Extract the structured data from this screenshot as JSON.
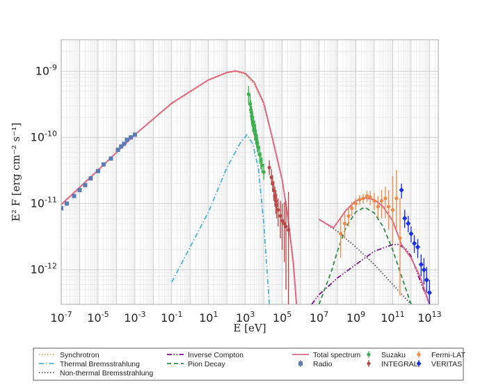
{
  "chart_data": {
    "type": "line",
    "xlabel": "E [eV]",
    "ylabel": "E² F [erg cm⁻² s⁻¹]",
    "xscale": "log",
    "yscale": "log",
    "xlim": [
      1e-07,
      30000000000000.0
    ],
    "ylim": [
      3e-13,
      3e-09
    ],
    "grid": true,
    "legend_position": "below",
    "x_tick_labels": [
      {
        "value": 1e-07,
        "base": "10",
        "exp": "-7"
      },
      {
        "value": 1e-05,
        "base": "10",
        "exp": "-5"
      },
      {
        "value": 0.001,
        "base": "10",
        "exp": "-3"
      },
      {
        "value": 0.1,
        "base": "10",
        "exp": "-1"
      },
      {
        "value": 10.0,
        "base": "10",
        "exp": "1"
      },
      {
        "value": 1000.0,
        "base": "10",
        "exp": "3"
      },
      {
        "value": 100000.0,
        "base": "10",
        "exp": "5"
      },
      {
        "value": 10000000.0,
        "base": "10",
        "exp": "7"
      },
      {
        "value": 1000000000.0,
        "base": "10",
        "exp": "9"
      },
      {
        "value": 100000000000.0,
        "base": "10",
        "exp": "11"
      },
      {
        "value": 10000000000000.0,
        "base": "10",
        "exp": "13"
      }
    ],
    "y_tick_labels": [
      {
        "value": 1e-09,
        "base": "10",
        "exp": "-9"
      },
      {
        "value": 1e-10,
        "base": "10",
        "exp": "-10"
      },
      {
        "value": 1e-11,
        "base": "10",
        "exp": "-11"
      },
      {
        "value": 1e-12,
        "base": "10",
        "exp": "-12"
      }
    ],
    "series": [
      {
        "name": "Synchrotron",
        "style": "dotted",
        "color": "#d4b25c",
        "points": [
          [
            1e-07,
            9.5e-12
          ],
          [
            1e-05,
            3.1e-11
          ],
          [
            0.001,
            1.1e-10
          ],
          [
            0.1,
            3.2e-10
          ],
          [
            10.0,
            7.3e-10
          ],
          [
            100.0,
            9.4e-10
          ],
          [
            300.0,
            9.9e-10
          ],
          [
            1000.0,
            8.9e-10
          ],
          [
            3000.0,
            6.3e-10
          ],
          [
            10000.0,
            3.1e-10
          ],
          [
            30000.0,
            9e-11
          ],
          [
            100000.0,
            2.2e-11
          ],
          [
            200000.0,
            6e-12
          ],
          [
            400000.0,
            1.1e-12
          ],
          [
            600000.0,
            3e-13
          ]
        ]
      },
      {
        "name": "Thermal Bremsstrahlung",
        "style": "dashdot",
        "color": "#4bb3d4",
        "points": [
          [
            0.1,
            6.5e-13
          ],
          [
            1.0,
            2.2e-12
          ],
          [
            10.0,
            7.5e-12
          ],
          [
            100.0,
            3.5e-11
          ],
          [
            500.0,
            8e-11
          ],
          [
            1200.0,
            1.1e-10
          ],
          [
            2500.0,
            8e-11
          ],
          [
            5000.0,
            3.5e-11
          ],
          [
            10000.0,
            5e-12
          ],
          [
            15000.0,
            1e-12
          ],
          [
            20000.0,
            3e-13
          ]
        ]
      },
      {
        "name": "Non-thermal Bremsstrahlung",
        "style": "dotted",
        "color": "#505050",
        "points": [
          [
            10000000.0,
            5.8e-12
          ],
          [
            100000000.0,
            3.8e-12
          ],
          [
            1000000000.0,
            2.2e-12
          ],
          [
            10000000000.0,
            1.2e-12
          ],
          [
            100000000000.0,
            6e-13
          ],
          [
            1000000000000.0,
            3e-13
          ]
        ]
      },
      {
        "name": "Inverse Compton",
        "style": "dashdotdot",
        "color": "#7a0f8a",
        "points": [
          [
            4000000.0,
            3e-13
          ],
          [
            10000000.0,
            4.2e-13
          ],
          [
            100000000.0,
            7.5e-13
          ],
          [
            1000000000.0,
            1.2e-12
          ],
          [
            10000000000.0,
            1.9e-12
          ],
          [
            100000000000.0,
            2.4e-12
          ],
          [
            200000000000.0,
            2.4e-12
          ],
          [
            500000000000.0,
            2.1e-12
          ],
          [
            1000000000000.0,
            1.6e-12
          ],
          [
            3000000000000.0,
            7e-13
          ],
          [
            10000000000000.0,
            3e-13
          ]
        ]
      },
      {
        "name": "Pion Decay",
        "style": "dashed",
        "color": "#2e8b46",
        "points": [
          [
            10000000.0,
            3e-13
          ],
          [
            50000000.0,
            1e-12
          ],
          [
            100000000.0,
            1.9e-12
          ],
          [
            300000000.0,
            4.5e-12
          ],
          [
            1000000000.0,
            7.5e-12
          ],
          [
            3000000000.0,
            8.8e-12
          ],
          [
            10000000000.0,
            7.2e-12
          ],
          [
            30000000000.0,
            4.5e-12
          ],
          [
            100000000000.0,
            2e-12
          ],
          [
            300000000000.0,
            8e-13
          ],
          [
            1000000000000.0,
            3e-13
          ]
        ]
      },
      {
        "name": "Total spectrum",
        "style": "solid",
        "color": "#e06887",
        "points": [
          [
            1e-07,
            9.7e-12
          ],
          [
            1e-05,
            3.2e-11
          ],
          [
            0.001,
            1.1e-10
          ],
          [
            0.1,
            3.3e-10
          ],
          [
            10.0,
            7.4e-10
          ],
          [
            100.0,
            9.6e-10
          ],
          [
            300.0,
            1.01e-09
          ],
          [
            1000.0,
            9.3e-10
          ],
          [
            3000.0,
            6.8e-10
          ],
          [
            10000.0,
            3.3e-10
          ],
          [
            30000.0,
            9.5e-11
          ],
          [
            100000.0,
            2.3e-11
          ],
          [
            200000.0,
            6.5e-12
          ],
          [
            400000.0,
            1.3e-12
          ],
          [
            600000.0,
            3e-13
          ]
        ]
      },
      {
        "name": "Total spectrum",
        "style": "solid",
        "color": "#e06887",
        "points": [
          [
            10000000.0,
            5.8e-12
          ],
          [
            30000000.0,
            4.8e-12
          ],
          [
            60000000.0,
            4.3e-12
          ],
          [
            100000000.0,
            5.2e-12
          ],
          [
            300000000.0,
            8e-12
          ],
          [
            1000000000.0,
            1.1e-11
          ],
          [
            3000000000.0,
            1.22e-11
          ],
          [
            10000000000.0,
            1.15e-11
          ],
          [
            30000000000.0,
            9e-12
          ],
          [
            100000000000.0,
            5.5e-12
          ],
          [
            300000000000.0,
            2.4e-12
          ],
          [
            1000000000000.0,
            1.5e-12
          ],
          [
            3000000000000.0,
            8e-13
          ],
          [
            10000000000000.0,
            3e-13
          ]
        ]
      }
    ],
    "data_series": [
      {
        "name": "Radio",
        "color": "#5b7bb8",
        "marker": "square",
        "points": [
          [
            1e-07,
            8.5e-12
          ],
          [
            2e-07,
            1e-11
          ],
          [
            5e-07,
            1.3e-11
          ],
          [
            1e-06,
            1.6e-11
          ],
          [
            2e-06,
            1.9e-11
          ],
          [
            4e-06,
            2.4e-11
          ],
          [
            1e-05,
            3.1e-11
          ],
          [
            2e-05,
            3.9e-11
          ],
          [
            5e-05,
            4.8e-11
          ],
          [
            0.00012,
            6.5e-11
          ],
          [
            0.00018,
            7.3e-11
          ],
          [
            0.00026,
            8e-11
          ],
          [
            0.00037,
            9.2e-11
          ],
          [
            0.0006,
            1e-10
          ],
          [
            0.001,
            1.1e-10
          ]
        ]
      },
      {
        "name": "Suzaku",
        "color": "#3daf4f",
        "marker": "dot",
        "points": [
          [
            1500.0,
            4.5e-10,
            6e-10,
            3.2e-10
          ],
          [
            1800.0,
            3.2e-10,
            4.5e-10,
            2.3e-10
          ],
          [
            2000.0,
            2.6e-10,
            3.6e-10,
            1.8e-10
          ],
          [
            2200.0,
            2.1e-10,
            3e-10,
            1.5e-10
          ],
          [
            2500.0,
            1.7e-10,
            2.5e-10,
            1.2e-10
          ],
          [
            2800.0,
            1.5e-10,
            2.1e-10,
            1.1e-10
          ],
          [
            3200.0,
            1.3e-10,
            1.8e-10,
            9e-11
          ],
          [
            3600.0,
            1.1e-10,
            1.6e-10,
            8e-11
          ],
          [
            4000.0,
            9.5e-11,
            1.3e-10,
            7e-11
          ],
          [
            4500.0,
            8e-11,
            1.1e-10,
            6e-11
          ],
          [
            5000.0,
            7e-11,
            9e-11,
            5.3e-11
          ],
          [
            6000.0,
            5.5e-11,
            7.5e-11,
            4e-11
          ],
          [
            7000.0,
            4.5e-11,
            6e-11,
            3.3e-11
          ],
          [
            8000.0,
            3.8e-11,
            5e-11,
            2.9e-11
          ],
          [
            10000.0,
            3e-11,
            4e-11,
            2.3e-11
          ]
        ]
      },
      {
        "name": "INTEGRAL",
        "color": "#b84a4a",
        "marker": "dot",
        "points": [
          [
            20000.0,
            3.5e-11,
            4.5e-11,
            2.7e-11
          ],
          [
            26000.0,
            2.5e-11,
            3.3e-11,
            1.9e-11
          ],
          [
            30000.0,
            2e-11,
            2.7e-11,
            1.5e-11
          ],
          [
            35000.0,
            1.6e-11,
            2.2e-11,
            1.1e-11
          ],
          [
            40000.0,
            1.3e-11,
            1.8e-11,
            9e-12
          ],
          [
            45000.0,
            1.1e-11,
            1.6e-11,
            7e-12
          ],
          [
            50000.0,
            9.5e-12,
            1.4e-11,
            6e-12
          ],
          [
            60000.0,
            8e-12,
            1.2e-11,
            4.5e-12
          ],
          [
            80000.0,
            6.5e-12,
            1.1e-11,
            3e-12
          ],
          [
            100000.0,
            5.5e-12,
            1e-11,
            2e-12
          ],
          [
            130000.0,
            5e-12,
            1.05e-11,
            1.3e-12
          ],
          [
            160000.0,
            4.5e-12,
            1.1e-11,
            5e-13
          ],
          [
            220000.0,
            4e-12,
            1.5e-11,
            3e-13
          ]
        ]
      },
      {
        "name": "Fermi-LAT",
        "color": "#f08a4b",
        "marker": "dot",
        "points": [
          [
            150000000.0,
            3.5e-12,
            6e-12,
            1.5e-12
          ],
          [
            250000000.0,
            5e-12,
            7e-12,
            3e-12
          ],
          [
            400000000.0,
            6.5e-12,
            8.5e-12,
            4.5e-12
          ],
          [
            600000000.0,
            8.5e-12,
            1.05e-11,
            6.5e-12
          ],
          [
            1000000000.0,
            1e-11,
            1.2e-11,
            8e-12
          ],
          [
            1600000000.0,
            1.15e-11,
            1.35e-11,
            9.5e-12
          ],
          [
            2500000000.0,
            1.2e-11,
            1.4e-11,
            1e-11
          ],
          [
            4000000000.0,
            1.3e-11,
            1.55e-11,
            1.05e-11
          ],
          [
            6000000000.0,
            1.25e-11,
            1.55e-11,
            9.5e-12
          ],
          [
            10000000000.0,
            1.1e-11,
            1.45e-11,
            8e-12
          ],
          [
            16000000000.0,
            9e-12,
            1.3e-11,
            6e-12
          ],
          [
            25000000000.0,
            1.1e-11,
            1.6e-11,
            6e-12
          ],
          [
            40000000000.0,
            1.2e-11,
            1.8e-11,
            6e-12
          ],
          [
            60000000000.0,
            9e-12,
            1.6e-11,
            4e-12
          ],
          [
            100000000000.0,
            8e-12,
            2.6e-11,
            2.5e-12
          ],
          [
            160000000000.0,
            1.2e-11,
            3.2e-11,
            4e-12
          ],
          [
            250000000000.0,
            3e-12,
            1.2e-11,
            4e-13
          ]
        ]
      },
      {
        "name": "VERITAS",
        "color": "#1a2de8",
        "marker": "diamond",
        "points": [
          [
            300000000000.0,
            1.6e-11,
            2e-11,
            1.2e-11
          ],
          [
            450000000000.0,
            6e-12,
            8e-12,
            4.3e-12
          ],
          [
            700000000000.0,
            5e-12,
            6.5e-12,
            3.7e-12
          ],
          [
            1000000000000.0,
            3.5e-12,
            4.5e-12,
            2.6e-12
          ],
          [
            1500000000000.0,
            2.5e-12,
            3.3e-12,
            1.8e-12
          ],
          [
            2300000000000.0,
            2.2e-12,
            2.9e-12,
            1.5e-12
          ],
          [
            3500000000000.0,
            1.2e-12,
            1.7e-12,
            8e-13
          ],
          [
            5000000000000.0,
            1e-12,
            1.5e-12,
            6e-13
          ],
          [
            7000000000000.0,
            7e-13,
            1.1e-12,
            4.5e-13
          ],
          [
            10000000000000.0,
            4.5e-13,
            7e-13,
            3e-13
          ]
        ]
      }
    ],
    "legend": [
      {
        "label": "Synchrotron",
        "kind": "line",
        "style": "dotted",
        "color": "#d4b25c"
      },
      {
        "label": "Thermal Bremsstrahlung",
        "kind": "line",
        "style": "dashdot",
        "color": "#4bb3d4"
      },
      {
        "label": "Non-thermal Bremsstrahlung",
        "kind": "line",
        "style": "dotted",
        "color": "#505050"
      },
      {
        "label": "Inverse Compton",
        "kind": "line",
        "style": "dashdotdot",
        "color": "#7a0f8a"
      },
      {
        "label": "Pion Decay",
        "kind": "line",
        "style": "dashed",
        "color": "#2e8b46"
      },
      {
        "label": "Total spectrum",
        "kind": "line",
        "style": "solid",
        "color": "#e06887"
      },
      {
        "label": "Radio",
        "kind": "marker",
        "marker": "square",
        "color": "#5b7bb8"
      },
      {
        "label": "Suzaku",
        "kind": "marker",
        "marker": "dot",
        "color": "#3daf4f"
      },
      {
        "label": "INTEGRAL",
        "kind": "marker",
        "marker": "dot",
        "color": "#b84a4a"
      },
      {
        "label": "Fermi-LAT",
        "kind": "marker",
        "marker": "dot",
        "color": "#f08a4b"
      },
      {
        "label": "VERITAS",
        "kind": "marker",
        "marker": "diamond",
        "color": "#1a2de8"
      }
    ]
  }
}
